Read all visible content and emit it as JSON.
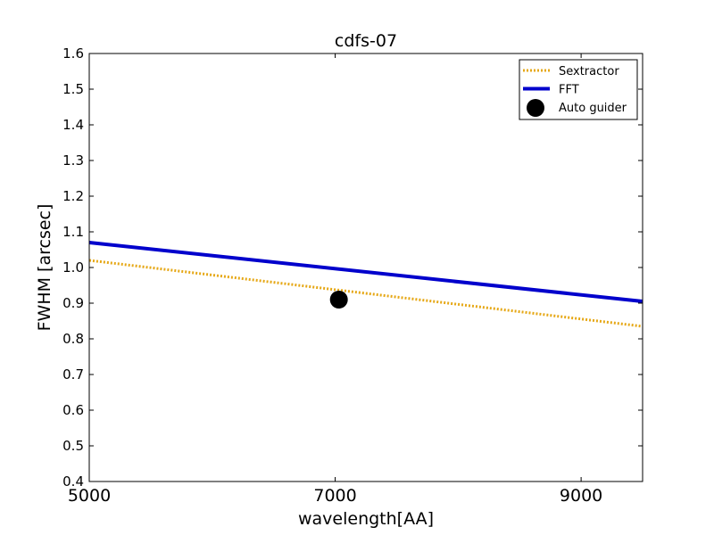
{
  "chart_data": {
    "type": "line",
    "title": "cdfs-07",
    "xlabel": "wavelength[AA]",
    "ylabel": "FWHM [arcsec]",
    "xlim": [
      5000,
      9500
    ],
    "ylim": [
      0.4,
      1.6
    ],
    "xticks": [
      5000,
      7000,
      9000
    ],
    "xtick_labels": [
      "5000",
      "7000",
      "9000"
    ],
    "yticks": [
      0.4,
      0.5,
      0.6,
      0.7,
      0.8,
      0.9,
      1.0,
      1.1,
      1.2,
      1.3,
      1.4,
      1.5,
      1.6
    ],
    "ytick_labels": [
      "0.4",
      "0.5",
      "0.6",
      "0.7",
      "0.8",
      "0.9",
      "1.0",
      "1.1",
      "1.2",
      "1.3",
      "1.4",
      "1.5",
      "1.6"
    ],
    "grid": false,
    "legend_position": "top-right",
    "series": [
      {
        "name": "Sextractor",
        "style": "dotted",
        "color": "#e6a817",
        "x": [
          5000,
          9500
        ],
        "y": [
          1.02,
          0.835
        ]
      },
      {
        "name": "FFT",
        "style": "solid",
        "color": "#0000cc",
        "x": [
          5000,
          9500
        ],
        "y": [
          1.07,
          0.905
        ]
      },
      {
        "name": "Auto guider",
        "style": "marker",
        "color": "#000000",
        "x": [
          7030
        ],
        "y": [
          0.91
        ]
      }
    ]
  }
}
